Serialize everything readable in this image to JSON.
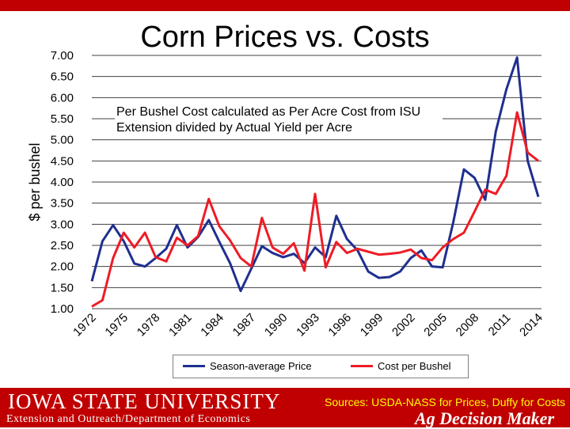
{
  "chart_data": {
    "type": "line",
    "title": "Corn Prices vs. Costs",
    "xlabel": "",
    "ylabel": "$ per bushel",
    "xlim": [
      1972,
      2014
    ],
    "ylim": [
      1.0,
      7.0
    ],
    "ytick_labels": [
      "1.00",
      "1.50",
      "2.00",
      "2.50",
      "3.00",
      "3.50",
      "4.00",
      "4.50",
      "5.00",
      "5.50",
      "6.00",
      "6.50",
      "7.00"
    ],
    "xtick_labels": [
      "1972",
      "1975",
      "1978",
      "1981",
      "1984",
      "1987",
      "1990",
      "1993",
      "1996",
      "1999",
      "2002",
      "2005",
      "2008",
      "2011",
      "2014"
    ],
    "grid": "horizontal",
    "legend_position": "bottom",
    "annotation": "Per Bushel Cost calculated as Per Acre Cost from ISU Extension divided by Actual Yield per Acre",
    "x": [
      1972,
      1973,
      1974,
      1975,
      1976,
      1977,
      1978,
      1979,
      1980,
      1981,
      1982,
      1983,
      1984,
      1985,
      1986,
      1987,
      1988,
      1989,
      1990,
      1991,
      1992,
      1993,
      1994,
      1995,
      1996,
      1997,
      1998,
      1999,
      2000,
      2001,
      2002,
      2003,
      2004,
      2005,
      2006,
      2007,
      2008,
      2009,
      2010,
      2011,
      2012,
      2013,
      2014
    ],
    "series": [
      {
        "name": "Season-average Price",
        "color": "#1f2f8f",
        "values": [
          1.65,
          2.6,
          2.98,
          2.6,
          2.07,
          2.0,
          2.2,
          2.42,
          2.98,
          2.45,
          2.7,
          3.1,
          2.58,
          2.08,
          1.42,
          1.95,
          2.48,
          2.32,
          2.22,
          2.3,
          2.08,
          2.45,
          2.22,
          3.2,
          2.65,
          2.38,
          1.88,
          1.73,
          1.75,
          1.88,
          2.2,
          2.38,
          2.0,
          1.98,
          3.05,
          4.3,
          4.1,
          3.58,
          5.2,
          6.2,
          6.95,
          4.5,
          3.65
        ]
      },
      {
        "name": "Cost per Bushel",
        "color": "#ee1c25",
        "values": [
          1.05,
          1.2,
          2.2,
          2.8,
          2.45,
          2.8,
          2.22,
          2.12,
          2.68,
          2.5,
          2.72,
          3.6,
          2.95,
          2.62,
          2.2,
          2.0,
          3.15,
          2.45,
          2.3,
          2.55,
          1.9,
          3.72,
          1.98,
          2.58,
          2.32,
          2.42,
          2.35,
          2.28,
          2.3,
          2.33,
          2.4,
          2.2,
          2.15,
          2.45,
          2.65,
          2.8,
          3.3,
          3.82,
          3.72,
          4.15,
          5.65,
          4.7,
          4.5
        ]
      }
    ]
  },
  "footer": {
    "university": "IOWA STATE UNIVERSITY",
    "department": "Extension and Outreach/Department of Economics",
    "sources": "Sources: USDA-NASS for Prices, Duffy for Costs",
    "brand": "Ag Decision Maker"
  }
}
